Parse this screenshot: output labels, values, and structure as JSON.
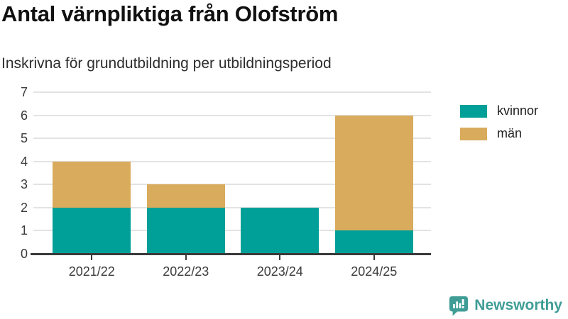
{
  "header": {
    "title": "Antal värnpliktiga från Olofström",
    "subtitle": "Inskrivna för grundutbildning per utbildningsperiod"
  },
  "chart_data": {
    "type": "bar",
    "stacked": true,
    "categories": [
      "2021/22",
      "2022/23",
      "2023/24",
      "2024/25"
    ],
    "series": [
      {
        "name": "kvinnor",
        "color": "#00A098",
        "values": [
          2,
          2,
          2,
          1
        ]
      },
      {
        "name": "män",
        "color": "#D9AB5C",
        "values": [
          2,
          1,
          0,
          5
        ]
      }
    ],
    "totals": [
      4,
      3,
      2,
      6
    ],
    "ylim": [
      0,
      7
    ],
    "yticks": [
      0,
      1,
      2,
      3,
      4,
      5,
      6,
      7
    ],
    "grid": true,
    "legend_position": "right"
  },
  "colors": {
    "grid": "#e3e3e3",
    "axis": "#3a3a3a",
    "tick_label": "#3b3b3b",
    "title_text": "#111111",
    "brand": "#3F9D96"
  },
  "footer": {
    "brand": "Newsworthy",
    "brand_icon": "bar-chart-speech-bubble"
  }
}
